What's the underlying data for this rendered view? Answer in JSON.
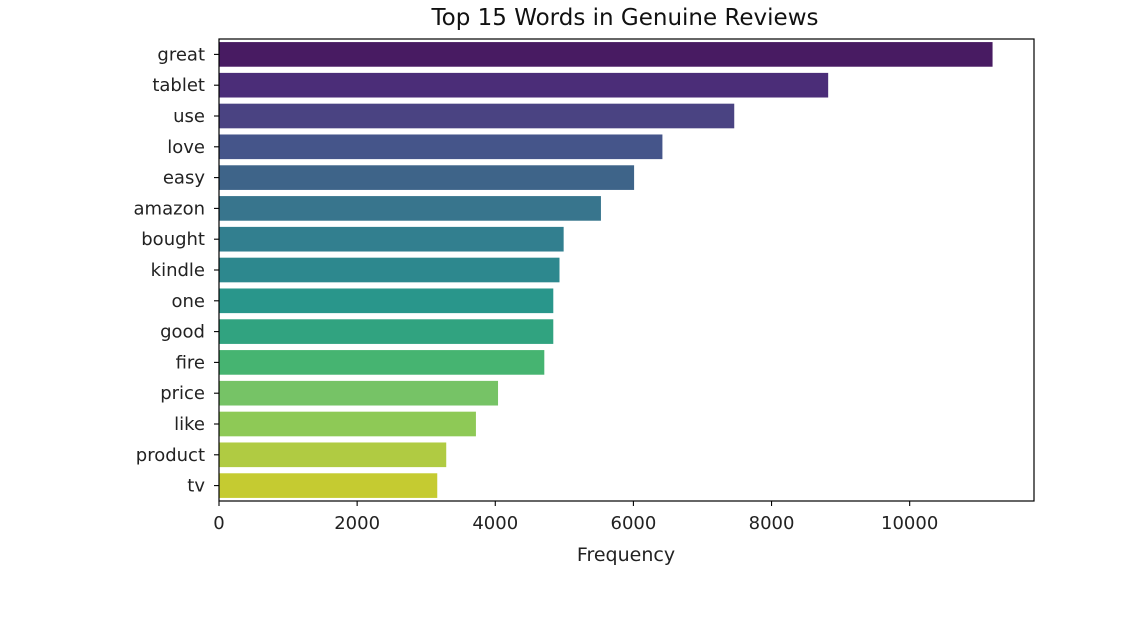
{
  "chart_data": {
    "type": "bar",
    "orientation": "horizontal",
    "title": "Top 15 Words in Genuine Reviews",
    "xlabel": "Frequency",
    "ylabel": "",
    "xlim": [
      0,
      11800
    ],
    "x_ticks": [
      0,
      2000,
      4000,
      6000,
      8000,
      10000
    ],
    "x_tick_labels": [
      "0",
      "2000",
      "4000",
      "6000",
      "8000",
      "10000"
    ],
    "grid": false,
    "legend": "none",
    "colormap": "viridis",
    "categories": [
      "great",
      "tablet",
      "use",
      "love",
      "easy",
      "amazon",
      "bought",
      "kindle",
      "one",
      "good",
      "fire",
      "price",
      "like",
      "product",
      "tv"
    ],
    "values": [
      11200,
      8820,
      7460,
      6420,
      6010,
      5530,
      4990,
      4930,
      4840,
      4840,
      4710,
      4040,
      3720,
      3290,
      3160
    ],
    "colors": [
      "#481b62",
      "#4b2d78",
      "#4a4382",
      "#45558a",
      "#3e6489",
      "#38758d",
      "#327f8f",
      "#2d888e",
      "#29968b",
      "#31a380",
      "#46b471",
      "#76c366",
      "#8ec956",
      "#b0cb42",
      "#c5cb31"
    ]
  }
}
